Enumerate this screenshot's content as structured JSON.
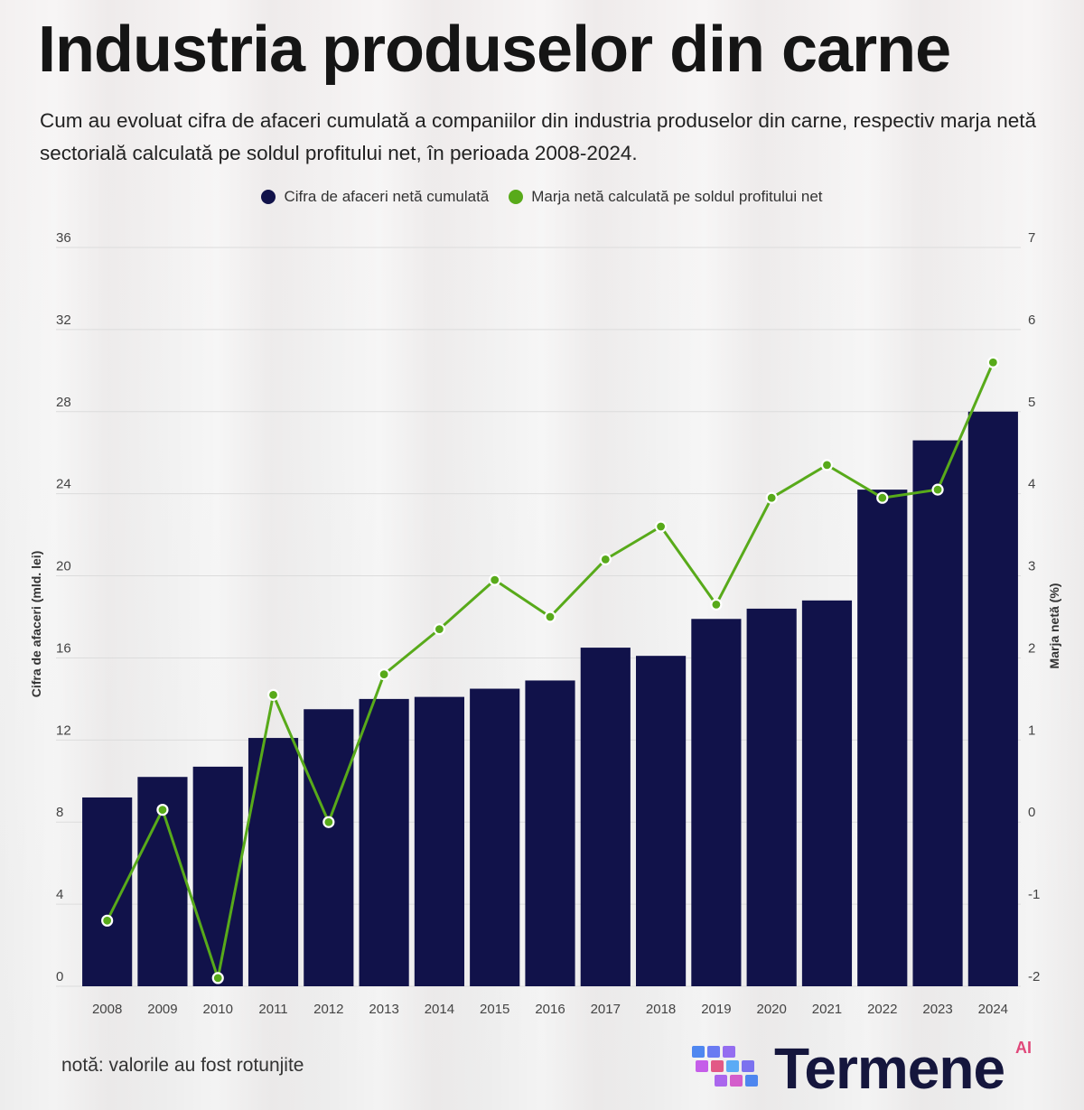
{
  "title": "Industria produselor din carne",
  "subtitle": "Cum au evoluat cifra de afaceri cumulată a companiilor din industria produselor din carne, respectiv marja netă sectorială calculată pe soldul profitului net, în perioada 2008-2024.",
  "note": "notă: valorile au fost rotunjite",
  "brand": {
    "name": "Termene",
    "suffix": "AI"
  },
  "colors": {
    "bar": "#11124a",
    "line": "#58aa1a",
    "grid": "#dcdcdc",
    "axis_text": "#444444"
  },
  "chart_data": {
    "type": "bar+line",
    "categories": [
      "2008",
      "2009",
      "2010",
      "2011",
      "2012",
      "2013",
      "2014",
      "2015",
      "2016",
      "2017",
      "2018",
      "2019",
      "2020",
      "2021",
      "2022",
      "2023",
      "2024"
    ],
    "series": [
      {
        "name": "Cifra de afaceri netă cumulată",
        "type": "bar",
        "axis": "left",
        "values": [
          9.2,
          10.2,
          10.7,
          12.1,
          13.5,
          14.0,
          14.1,
          14.5,
          14.9,
          16.5,
          16.1,
          17.9,
          18.4,
          18.8,
          24.2,
          26.6,
          28.0
        ]
      },
      {
        "name": "Marja netă calculată pe soldul profitului net",
        "type": "line",
        "axis": "right",
        "values": [
          -1.2,
          0.15,
          -1.9,
          1.55,
          0.0,
          1.8,
          2.35,
          2.95,
          2.5,
          3.2,
          3.6,
          2.65,
          3.95,
          4.35,
          3.95,
          4.05,
          5.6
        ]
      }
    ],
    "y_left": {
      "label": "Cifra de afaceri (mld. lei)",
      "min": 0,
      "max": 36,
      "ticks": [
        0,
        4,
        8,
        12,
        16,
        20,
        24,
        28,
        32,
        36
      ]
    },
    "y_right": {
      "label": "Marja netă (%)",
      "min": -2,
      "max": 7,
      "ticks": [
        -2,
        -1,
        0,
        1,
        2,
        3,
        4,
        5,
        6,
        7
      ]
    },
    "grid": true,
    "legend": "top-center"
  }
}
